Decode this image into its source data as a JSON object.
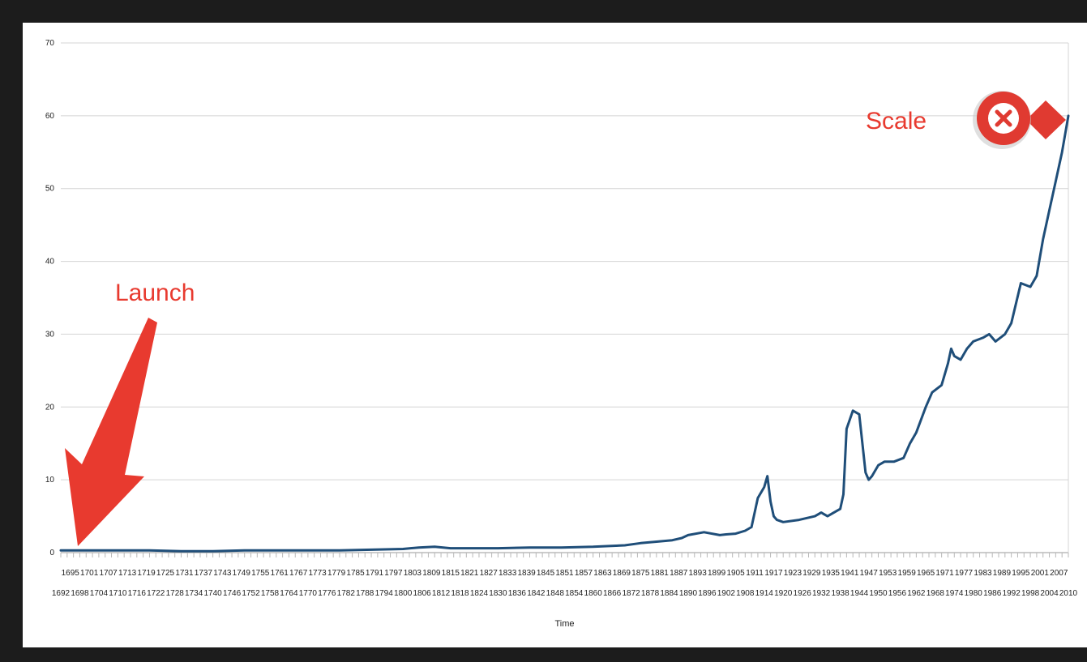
{
  "chart_data": {
    "type": "line",
    "title": "",
    "xlabel": "Time",
    "ylabel": "",
    "ylim": [
      0,
      70
    ],
    "yticks": [
      0,
      10,
      20,
      30,
      40,
      50,
      60,
      70
    ],
    "grid": true,
    "xlim": [
      1692,
      2010
    ],
    "xtick_labels_row1": [
      "1695",
      "1701",
      "1707",
      "1713",
      "1719",
      "1725",
      "1731",
      "1737",
      "1743",
      "1749",
      "1755",
      "1761",
      "1767",
      "1773",
      "1779",
      "1785",
      "1791",
      "1797",
      "1803",
      "1809",
      "1815",
      "1821",
      "1827",
      "1833",
      "1839",
      "1845",
      "1851",
      "1857",
      "1863",
      "1869",
      "1875",
      "1881",
      "1887",
      "1893",
      "1899",
      "1905",
      "1911",
      "1917",
      "1923",
      "1929",
      "1935",
      "1941",
      "1947",
      "1953",
      "1959",
      "1965",
      "1971",
      "1977",
      "1983",
      "1989",
      "1995",
      "2001",
      "2007"
    ],
    "xtick_labels_row2": [
      "1692",
      "1698",
      "1704",
      "1710",
      "1716",
      "1722",
      "1728",
      "1734",
      "1740",
      "1746",
      "1752",
      "1758",
      "1764",
      "1770",
      "1776",
      "1782",
      "1788",
      "1794",
      "1800",
      "1806",
      "1812",
      "1818",
      "1824",
      "1830",
      "1836",
      "1842",
      "1848",
      "1854",
      "1860",
      "1866",
      "1872",
      "1878",
      "1884",
      "1890",
      "1896",
      "1902",
      "1908",
      "1914",
      "1920",
      "1926",
      "1932",
      "1938",
      "1944",
      "1950",
      "1956",
      "1962",
      "1968",
      "1974",
      "1980",
      "1986",
      "1992",
      "1998",
      "2004",
      "2010"
    ],
    "series": [
      {
        "color": "#1f4e79",
        "x": [
          1692,
          1700,
          1710,
          1720,
          1730,
          1740,
          1750,
          1760,
          1770,
          1780,
          1790,
          1800,
          1805,
          1810,
          1815,
          1820,
          1830,
          1840,
          1850,
          1860,
          1865,
          1870,
          1875,
          1880,
          1885,
          1888,
          1890,
          1895,
          1900,
          1902,
          1905,
          1908,
          1910,
          1912,
          1914,
          1915,
          1916,
          1917,
          1918,
          1920,
          1925,
          1930,
          1932,
          1934,
          1936,
          1938,
          1939,
          1940,
          1942,
          1944,
          1945,
          1946,
          1947,
          1948,
          1950,
          1952,
          1955,
          1958,
          1960,
          1962,
          1965,
          1967,
          1970,
          1972,
          1973,
          1974,
          1976,
          1978,
          1980,
          1983,
          1985,
          1987,
          1990,
          1992,
          1995,
          1998,
          2000,
          2002,
          2004,
          2006,
          2008,
          2010
        ],
        "y": [
          0.3,
          0.3,
          0.3,
          0.3,
          0.2,
          0.2,
          0.3,
          0.3,
          0.3,
          0.3,
          0.4,
          0.5,
          0.7,
          0.8,
          0.6,
          0.6,
          0.6,
          0.7,
          0.7,
          0.8,
          0.9,
          1.0,
          1.3,
          1.5,
          1.7,
          2.0,
          2.4,
          2.8,
          2.4,
          2.5,
          2.6,
          3.0,
          3.5,
          7.5,
          9.0,
          10.5,
          7.0,
          5.0,
          4.5,
          4.2,
          4.5,
          5.0,
          5.5,
          5.0,
          5.5,
          6.0,
          8.0,
          17.0,
          19.5,
          19.0,
          15.0,
          11.0,
          10.0,
          10.5,
          12.0,
          12.5,
          12.5,
          13.0,
          15.0,
          16.5,
          20.0,
          22.0,
          23.0,
          26.0,
          28.0,
          27.0,
          26.5,
          28.0,
          29.0,
          29.5,
          30.0,
          29.0,
          30.0,
          31.5,
          37.0,
          36.5,
          38.0,
          43.0,
          47.0,
          51.0,
          55.0,
          60.0
        ]
      }
    ],
    "annotations": [
      {
        "text": "Launch",
        "color": "#e83a2f"
      },
      {
        "text": "Scale",
        "color": "#e83a2f"
      }
    ]
  }
}
